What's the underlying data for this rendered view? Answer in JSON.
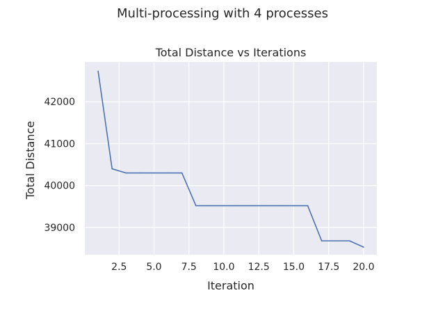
{
  "figure": {
    "suptitle": "Multi-processing with 4 processes"
  },
  "colors": {
    "axes_background": "#eaeaf2",
    "grid": "#ffffff",
    "line": "#4c72b0",
    "text": "#262626"
  },
  "chart_data": {
    "type": "line",
    "title": "Total Distance vs Iterations",
    "xlabel": "Iteration",
    "ylabel": "Total Distance",
    "xlim": [
      0.05,
      20.95
    ],
    "ylim": [
      38350,
      42950
    ],
    "xticks": [
      2.5,
      5.0,
      7.5,
      10.0,
      12.5,
      15.0,
      17.5,
      20.0
    ],
    "xtick_labels": [
      "2.5",
      "5.0",
      "7.5",
      "10.0",
      "12.5",
      "15.0",
      "17.5",
      "20.0"
    ],
    "yticks": [
      39000,
      40000,
      41000,
      42000
    ],
    "ytick_labels": [
      "39000",
      "40000",
      "41000",
      "42000"
    ],
    "grid": true,
    "series": [
      {
        "x": [
          1,
          2,
          3,
          4,
          5,
          6,
          7,
          8,
          9,
          10,
          11,
          12,
          13,
          14,
          15,
          16,
          17,
          18,
          19,
          20
        ],
        "values": [
          42730,
          40400,
          40300,
          40300,
          40300,
          40300,
          40300,
          39520,
          39520,
          39520,
          39520,
          39520,
          39520,
          39520,
          39520,
          39520,
          38680,
          38680,
          38680,
          38530
        ]
      }
    ]
  }
}
